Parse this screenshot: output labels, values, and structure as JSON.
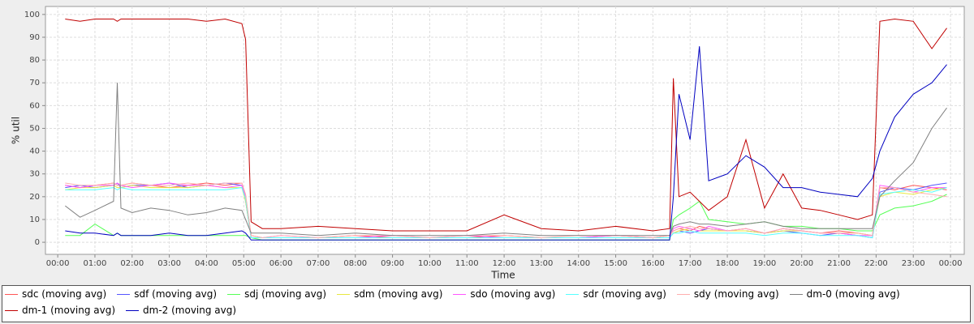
{
  "chart_data": {
    "type": "line",
    "y_label": "% util",
    "x_label": "Time",
    "x": [
      0.2,
      0.6,
      1.0,
      1.5,
      1.6,
      1.7,
      2.0,
      2.5,
      3.0,
      3.5,
      4.0,
      4.5,
      4.95,
      5.05,
      5.2,
      5.5,
      6,
      7,
      8,
      9,
      10,
      11,
      12,
      13,
      14,
      15,
      16,
      16.45,
      16.55,
      16.7,
      17,
      17.25,
      17.5,
      18,
      18.5,
      19,
      19.5,
      20,
      20.5,
      21,
      21.5,
      21.9,
      22.1,
      22.5,
      23,
      23.5,
      23.9
    ],
    "series": [
      {
        "name": "sdc (moving avg)",
        "color": "#ff5555",
        "values": [
          25,
          24,
          25,
          26,
          25,
          25,
          26,
          25,
          24,
          25,
          26,
          25,
          26,
          20,
          3,
          2,
          2,
          2,
          3,
          2,
          2,
          2,
          3,
          2,
          2,
          3,
          2,
          3,
          5,
          6,
          5,
          7,
          6,
          5,
          6,
          4,
          6,
          5,
          4,
          5,
          4,
          3,
          24,
          23,
          25,
          24,
          23
        ]
      },
      {
        "name": "sdf (moving avg)",
        "color": "#5555ff",
        "values": [
          24,
          25,
          24,
          25,
          26,
          24,
          25,
          25,
          26,
          24,
          25,
          26,
          25,
          18,
          2,
          2,
          2,
          2,
          2,
          2,
          2,
          2,
          2,
          2,
          2,
          2,
          2,
          2,
          4,
          5,
          4,
          5,
          6,
          5,
          5,
          4,
          5,
          4,
          3,
          4,
          3,
          2,
          22,
          24,
          23,
          25,
          26
        ]
      },
      {
        "name": "sdj (moving avg)",
        "color": "#55ff55",
        "values": [
          3,
          3,
          8,
          3,
          4,
          3,
          3,
          3,
          3,
          3,
          3,
          3,
          3,
          3,
          2,
          1,
          1,
          1,
          1,
          1,
          1,
          1,
          1,
          1,
          1,
          1,
          1,
          1,
          10,
          12,
          15,
          18,
          10,
          9,
          8,
          9,
          7,
          7,
          6,
          6,
          5,
          5,
          12,
          15,
          16,
          18,
          21
        ]
      },
      {
        "name": "sdm (moving avg)",
        "color": "#e8e840",
        "values": [
          23,
          24,
          24,
          25,
          24,
          24,
          25,
          24,
          24,
          24,
          25,
          24,
          24,
          18,
          2,
          2,
          2,
          2,
          2,
          2,
          2,
          2,
          2,
          2,
          2,
          2,
          2,
          2,
          4,
          5,
          6,
          5,
          5,
          5,
          5,
          4,
          5,
          5,
          4,
          4,
          4,
          3,
          20,
          22,
          21,
          23,
          24
        ]
      },
      {
        "name": "sdo (moving avg)",
        "color": "#ff55ff",
        "values": [
          25,
          24,
          25,
          25,
          26,
          25,
          24,
          25,
          26,
          25,
          25,
          24,
          25,
          20,
          2,
          2,
          3,
          2,
          2,
          3,
          2,
          3,
          2,
          2,
          2,
          3,
          2,
          2,
          6,
          7,
          6,
          5,
          7,
          5,
          6,
          4,
          6,
          5,
          4,
          4,
          3,
          3,
          25,
          24,
          22,
          24,
          24
        ]
      },
      {
        "name": "sdr (moving avg)",
        "color": "#55ffff",
        "values": [
          23,
          23,
          23,
          24,
          23,
          24,
          23,
          23,
          23,
          23,
          23,
          23,
          24,
          19,
          2,
          2,
          2,
          2,
          2,
          2,
          2,
          2,
          2,
          2,
          2,
          2,
          2,
          2,
          4,
          4,
          5,
          4,
          4,
          4,
          4,
          3,
          4,
          4,
          3,
          3,
          3,
          2,
          21,
          22,
          23,
          22,
          24
        ]
      },
      {
        "name": "sdy (moving avg)",
        "color": "#ffafaf",
        "values": [
          26,
          25,
          25,
          26,
          25,
          25,
          26,
          25,
          25,
          26,
          25,
          26,
          26,
          21,
          3,
          2,
          3,
          2,
          3,
          3,
          2,
          3,
          3,
          2,
          3,
          3,
          2,
          3,
          5,
          6,
          7,
          6,
          6,
          5,
          6,
          4,
          6,
          5,
          4,
          4,
          4,
          3,
          24,
          24,
          22,
          21,
          20
        ]
      },
      {
        "name": "dm-0 (moving avg)",
        "color": "#808080",
        "values": [
          16,
          11,
          14,
          18,
          70,
          15,
          13,
          15,
          14,
          12,
          13,
          15,
          14,
          10,
          4,
          4,
          4,
          3,
          4,
          3,
          3,
          3,
          4,
          3,
          3,
          3,
          3,
          3,
          7,
          8,
          9,
          8,
          8,
          7,
          8,
          9,
          7,
          6,
          6,
          6,
          6,
          6,
          20,
          27,
          35,
          50,
          59
        ]
      },
      {
        "name": "dm-1 (moving avg)",
        "color": "#c00000",
        "values": [
          98,
          97,
          98,
          98,
          97,
          98,
          98,
          98,
          98,
          98,
          97,
          98,
          96,
          89,
          9,
          6,
          6,
          7,
          6,
          5,
          5,
          5,
          12,
          6,
          5,
          7,
          5,
          6,
          72,
          20,
          22,
          18,
          14,
          20,
          45,
          15,
          30,
          15,
          14,
          12,
          10,
          12,
          97,
          98,
          97,
          85,
          94
        ]
      },
      {
        "name": "dm-2 (moving avg)",
        "color": "#0000c0",
        "values": [
          5,
          4,
          4,
          3,
          4,
          3,
          3,
          3,
          4,
          3,
          3,
          4,
          5,
          4,
          1,
          1,
          1,
          1,
          1,
          1,
          1,
          1,
          1,
          1,
          1,
          1,
          1,
          1,
          20,
          65,
          45,
          86,
          27,
          30,
          38,
          33,
          24,
          24,
          22,
          21,
          20,
          28,
          40,
          55,
          65,
          70,
          78
        ]
      }
    ],
    "xlim": [
      -0.33,
      24.37
    ],
    "xticks": [
      {
        "value": 0,
        "label": "00:00"
      },
      {
        "value": 1,
        "label": "01:00"
      },
      {
        "value": 2,
        "label": "02:00"
      },
      {
        "value": 3,
        "label": "03:00"
      },
      {
        "value": 4,
        "label": "04:00"
      },
      {
        "value": 5,
        "label": "05:00"
      },
      {
        "value": 6,
        "label": "06:00"
      },
      {
        "value": 7,
        "label": "07:00"
      },
      {
        "value": 8,
        "label": "08:00"
      },
      {
        "value": 9,
        "label": "09:00"
      },
      {
        "value": 10,
        "label": "10:00"
      },
      {
        "value": 11,
        "label": "11:00"
      },
      {
        "value": 12,
        "label": "12:00"
      },
      {
        "value": 13,
        "label": "13:00"
      },
      {
        "value": 14,
        "label": "14:00"
      },
      {
        "value": 15,
        "label": "15:00"
      },
      {
        "value": 16,
        "label": "16:00"
      },
      {
        "value": 17,
        "label": "17:00"
      },
      {
        "value": 18,
        "label": "18:00"
      },
      {
        "value": 19,
        "label": "19:00"
      },
      {
        "value": 20,
        "label": "20:00"
      },
      {
        "value": 21,
        "label": "21:00"
      },
      {
        "value": 22,
        "label": "22:00"
      },
      {
        "value": 23,
        "label": "23:00"
      },
      {
        "value": 24,
        "label": "00:00"
      }
    ],
    "ylim": [
      -5.3,
      103.5
    ],
    "yticks": [
      0,
      10,
      20,
      30,
      40,
      50,
      60,
      70,
      80,
      90,
      100
    ],
    "grid": true
  }
}
